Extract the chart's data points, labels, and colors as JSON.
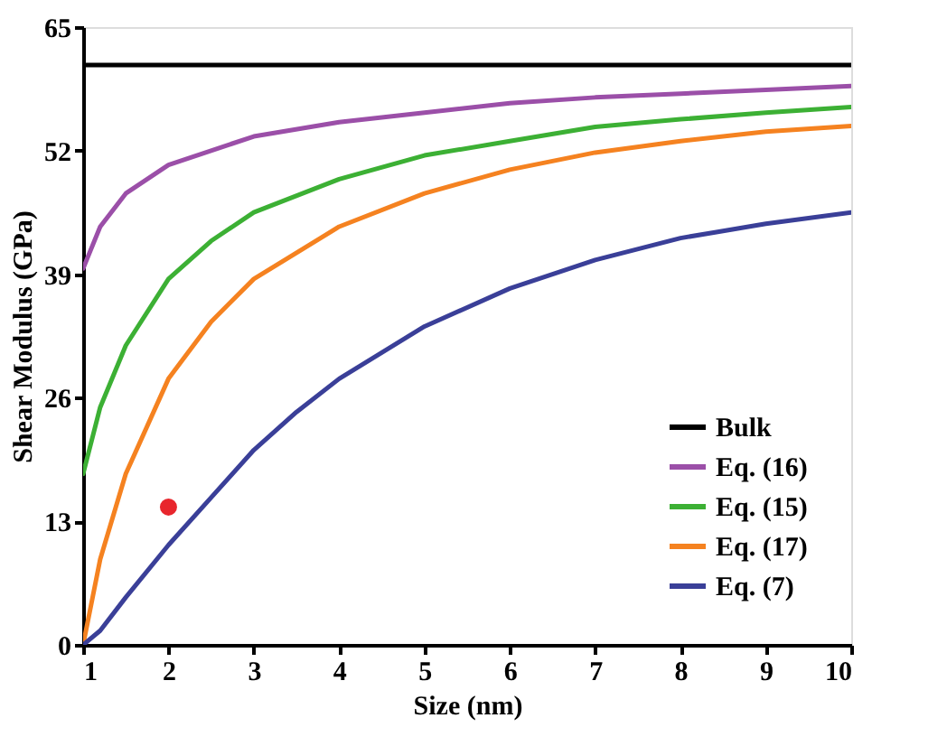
{
  "chart_data": {
    "type": "line",
    "xlabel": "Size (nm)",
    "ylabel": "Shear Modulus (GPa)",
    "xlim": [
      1,
      10
    ],
    "xticks": [
      1,
      2,
      3,
      4,
      5,
      6,
      7,
      8,
      9,
      10
    ],
    "ylim": [
      0,
      65
    ],
    "yticks": [
      0,
      13,
      26,
      39,
      52,
      65
    ],
    "grid": false,
    "legend": "bottom right",
    "marker": "none",
    "line_style": "solid",
    "series": [
      {
        "name": "Bulk",
        "color": "#000000",
        "x": [
          1,
          10
        ],
        "values": [
          61,
          61
        ]
      },
      {
        "name": "Eq. (16)",
        "color": "#9b4fa8",
        "x": [
          1,
          1.2,
          1.5,
          2,
          3,
          4,
          5,
          6,
          7,
          8,
          9,
          10
        ],
        "values": [
          39.6,
          44,
          47.5,
          50.5,
          53.5,
          55,
          56,
          57,
          57.6,
          58,
          58.4,
          58.8
        ]
      },
      {
        "name": "Eq. (15)",
        "color": "#3cb034",
        "x": [
          1,
          1.2,
          1.5,
          2,
          2.5,
          3,
          4,
          5,
          6,
          7,
          8,
          9,
          10
        ],
        "values": [
          18,
          25,
          31.5,
          38.5,
          42.5,
          45.5,
          49,
          51.5,
          53,
          54.5,
          55.3,
          56,
          56.6
        ]
      },
      {
        "name": "Eq. (17)",
        "color": "#f58220",
        "x": [
          1,
          1.2,
          1.5,
          2,
          2.5,
          3,
          4,
          5,
          6,
          7,
          8,
          9,
          10
        ],
        "values": [
          0,
          9,
          18,
          28,
          34,
          38.5,
          44,
          47.5,
          50,
          51.8,
          53,
          54,
          54.6
        ]
      },
      {
        "name": "Eq. (7)",
        "color": "#3a3f98",
        "x": [
          1,
          1.2,
          1.5,
          2,
          2.5,
          3,
          3.5,
          4,
          5,
          6,
          7,
          8,
          9,
          10
        ],
        "values": [
          0,
          1.5,
          5,
          10.5,
          15.5,
          20.5,
          24.5,
          28,
          33.5,
          37.5,
          40.5,
          42.8,
          44.3,
          45.5
        ]
      },
      {
        "type": "scatter",
        "color": "#e8262d",
        "marker": "circle",
        "x": [
          2
        ],
        "values": [
          14.5
        ]
      }
    ]
  }
}
